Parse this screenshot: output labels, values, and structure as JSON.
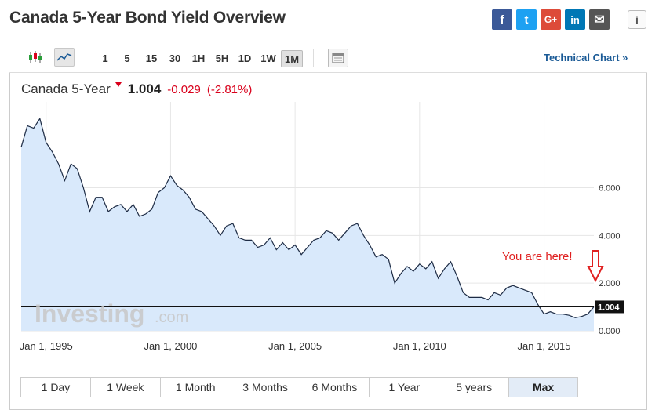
{
  "page": {
    "title": "Canada 5-Year Bond Yield Overview"
  },
  "social": [
    {
      "name": "facebook-icon",
      "glyph": "f",
      "color": "#3b5998"
    },
    {
      "name": "twitter-icon",
      "glyph": "t",
      "color": "#1da1f2"
    },
    {
      "name": "google-plus-icon",
      "glyph": "G+",
      "color": "#dd4b39"
    },
    {
      "name": "linkedin-icon",
      "glyph": "in",
      "color": "#0077b5"
    },
    {
      "name": "email-icon",
      "glyph": "✉",
      "color": "#555555"
    }
  ],
  "info_icon": "i",
  "toolbar": {
    "intervals": [
      "1",
      "5",
      "15",
      "30",
      "1H",
      "5H",
      "1D",
      "1W",
      "1M"
    ],
    "active_interval": "1M",
    "technical_link": "Technical Chart »"
  },
  "quote": {
    "name": "Canada 5-Year",
    "value": "1.004",
    "change": "-0.029",
    "change_pct": "(-2.81%)"
  },
  "annotation": "You are here!",
  "watermark": {
    "brand": "Investing",
    "suffix": ".com"
  },
  "ranges": [
    "1 Day",
    "1 Week",
    "1 Month",
    "3 Months",
    "6 Months",
    "1 Year",
    "5 years",
    "Max"
  ],
  "active_range": "Max",
  "colors": {
    "line": "#1d2b44",
    "fill": "#d9e9fb",
    "down": "#d9001b",
    "link": "#1a5a96",
    "annotation": "#e02020"
  },
  "chart_data": {
    "type": "area",
    "title": "",
    "xlabel": "",
    "ylabel": "",
    "x_tick_labels": [
      "Jan 1, 1995",
      "Jan 1, 2000",
      "Jan 1, 2005",
      "Jan 1, 2010",
      "Jan 1, 2015"
    ],
    "y_tick_labels": [
      "0.000",
      "2.000",
      "4.000",
      "6.000"
    ],
    "y_ticks": [
      0,
      2,
      4,
      6
    ],
    "ylim": [
      0,
      9.6
    ],
    "xlim": [
      1994.0,
      2017.0
    ],
    "last_value": 1.004,
    "last_label": "1.004",
    "reference_line": 1.004,
    "grid": true,
    "series": [
      {
        "x": [
          1994.0,
          1994.25,
          1994.5,
          1994.75,
          1995.0,
          1995.25,
          1995.5,
          1995.75,
          1996.0,
          1996.25,
          1996.5,
          1996.75,
          1997.0,
          1997.25,
          1997.5,
          1997.75,
          1998.0,
          1998.25,
          1998.5,
          1998.75,
          1999.0,
          1999.25,
          1999.5,
          1999.75,
          2000.0,
          2000.25,
          2000.5,
          2000.75,
          2001.0,
          2001.25,
          2001.5,
          2001.75,
          2002.0,
          2002.25,
          2002.5,
          2002.75,
          2003.0,
          2003.25,
          2003.5,
          2003.75,
          2004.0,
          2004.25,
          2004.5,
          2004.75,
          2005.0,
          2005.25,
          2005.5,
          2005.75,
          2006.0,
          2006.25,
          2006.5,
          2006.75,
          2007.0,
          2007.25,
          2007.5,
          2007.75,
          2008.0,
          2008.25,
          2008.5,
          2008.75,
          2009.0,
          2009.25,
          2009.5,
          2009.75,
          2010.0,
          2010.25,
          2010.5,
          2010.75,
          2011.0,
          2011.25,
          2011.5,
          2011.75,
          2012.0,
          2012.25,
          2012.5,
          2012.75,
          2013.0,
          2013.25,
          2013.5,
          2013.75,
          2014.0,
          2014.25,
          2014.5,
          2014.75,
          2015.0,
          2015.25,
          2015.5,
          2015.75,
          2016.0,
          2016.25,
          2016.5,
          2016.75,
          2017.0
        ],
        "y": [
          7.7,
          8.6,
          8.5,
          8.9,
          7.9,
          7.5,
          7.0,
          6.3,
          7.0,
          6.8,
          6.0,
          5.0,
          5.6,
          5.6,
          5.0,
          5.2,
          5.3,
          5.0,
          5.3,
          4.8,
          4.9,
          5.1,
          5.8,
          6.0,
          6.5,
          6.1,
          5.9,
          5.6,
          5.1,
          5.0,
          4.7,
          4.4,
          4.0,
          4.4,
          4.5,
          3.9,
          3.8,
          3.8,
          3.5,
          3.6,
          3.9,
          3.4,
          3.7,
          3.4,
          3.6,
          3.2,
          3.5,
          3.8,
          3.9,
          4.2,
          4.1,
          3.8,
          4.1,
          4.4,
          4.5,
          4.0,
          3.6,
          3.1,
          3.2,
          3.0,
          2.0,
          2.4,
          2.7,
          2.5,
          2.8,
          2.6,
          2.9,
          2.2,
          2.6,
          2.9,
          2.3,
          1.6,
          1.4,
          1.4,
          1.4,
          1.3,
          1.6,
          1.5,
          1.8,
          1.9,
          1.8,
          1.7,
          1.6,
          1.1,
          0.7,
          0.8,
          0.7,
          0.7,
          0.65,
          0.55,
          0.6,
          0.7,
          1.004
        ]
      }
    ]
  }
}
